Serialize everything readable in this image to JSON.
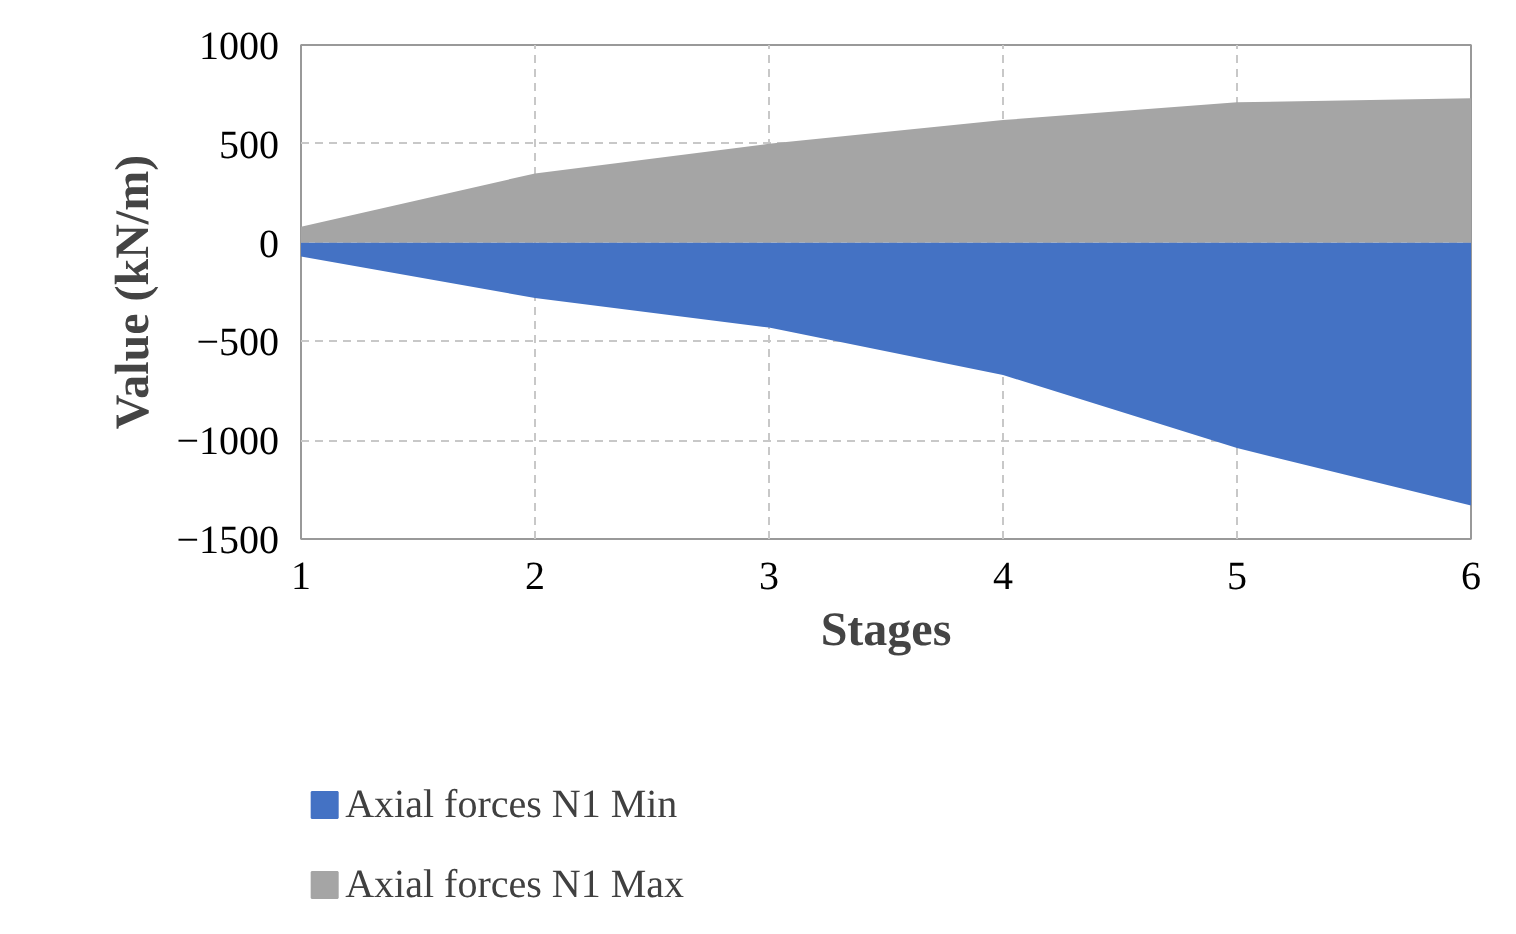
{
  "chart_data": {
    "type": "area",
    "xlabel": "Stages",
    "ylabel": "Value (kN/m)",
    "x": [
      1,
      2,
      3,
      4,
      5,
      6
    ],
    "series": [
      {
        "name": "Axial forces N1 Min",
        "color": "#4472c4",
        "values": [
          -70,
          -280,
          -430,
          -670,
          -1040,
          -1330
        ]
      },
      {
        "name": "Axial forces N1 Max",
        "color": "#a5a5a5",
        "values": [
          80,
          350,
          500,
          620,
          710,
          730
        ]
      }
    ],
    "xlim": [
      1,
      6
    ],
    "xticks": [
      1,
      2,
      3,
      4,
      5,
      6
    ],
    "ylim": [
      -1500,
      1000
    ],
    "yticks": [
      -1500,
      -1000,
      -500,
      0,
      500,
      1000
    ],
    "grid": true,
    "legend": "bottom left"
  }
}
